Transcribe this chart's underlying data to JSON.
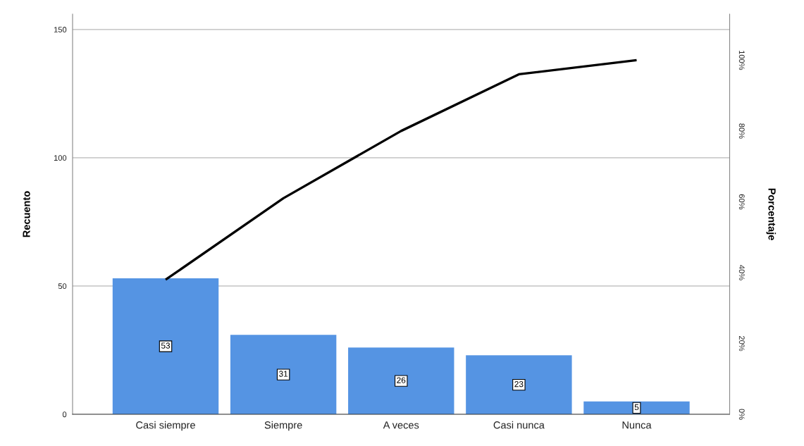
{
  "chart_data": {
    "type": "bar",
    "categories": [
      "Casi siempre",
      "Siempre",
      "A veces",
      "Casi nunca",
      "Nunca"
    ],
    "series": [
      {
        "color": "#5594e3",
        "values": [
          53,
          31,
          26,
          23,
          5
        ],
        "value_labels": [
          "53",
          "31",
          "26",
          "23",
          "5"
        ]
      },
      {
        "type": "line",
        "axis": "y2",
        "color": "#000000",
        "values": [
          38,
          61,
          80,
          96,
          100
        ]
      }
    ],
    "ylabel": "Recuento",
    "y2label": "Porcentaje",
    "ylim": [
      0,
      156
    ],
    "yticks": [
      0,
      50,
      100,
      150
    ],
    "y2lim": [
      0,
      113
    ],
    "y2ticks": [
      {
        "value": 0,
        "label": "0%"
      },
      {
        "value": 20,
        "label": "20%"
      },
      {
        "value": 40,
        "label": "40%"
      },
      {
        "value": 60,
        "label": "60%"
      },
      {
        "value": 80,
        "label": "80%"
      },
      {
        "value": 100,
        "label": "100%"
      }
    ],
    "grid": "y"
  }
}
